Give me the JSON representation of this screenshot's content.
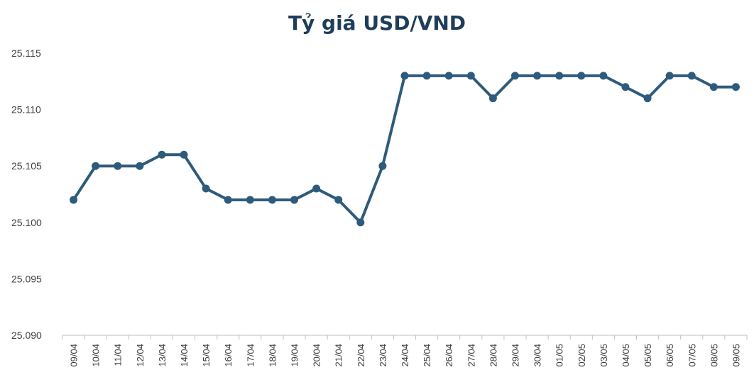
{
  "chart_data": {
    "type": "line",
    "title": "Tỷ giá USD/VND",
    "xlabel": "",
    "ylabel": "",
    "categories": [
      "09/04",
      "10/04",
      "11/04",
      "12/04",
      "13/04",
      "14/04",
      "15/04",
      "16/04",
      "17/04",
      "18/04",
      "19/04",
      "20/04",
      "21/04",
      "22/04",
      "23/04",
      "24/04",
      "25/04",
      "26/04",
      "27/04",
      "28/04",
      "29/04",
      "30/04",
      "01/05",
      "02/05",
      "03/05",
      "04/05",
      "05/05",
      "06/05",
      "07/05",
      "08/05",
      "09/05"
    ],
    "series": [
      {
        "values": [
          25102,
          25105,
          25105,
          25105,
          25106,
          25106,
          25103,
          25102,
          25102,
          25102,
          25102,
          25103,
          25102,
          25100,
          25105,
          25113,
          25113,
          25113,
          25113,
          25111,
          25113,
          25113,
          25113,
          25113,
          25113,
          25112,
          25111,
          25113,
          25113,
          25112,
          25112
        ]
      }
    ],
    "ylim": [
      25090,
      25115
    ],
    "yticks": [
      "25.090",
      "25.095",
      "25.100",
      "25.105",
      "25.110",
      "25.115"
    ],
    "grid": false,
    "legend": "none",
    "line_color": "#2e5b7c",
    "title_color": "#1f3d5a"
  }
}
